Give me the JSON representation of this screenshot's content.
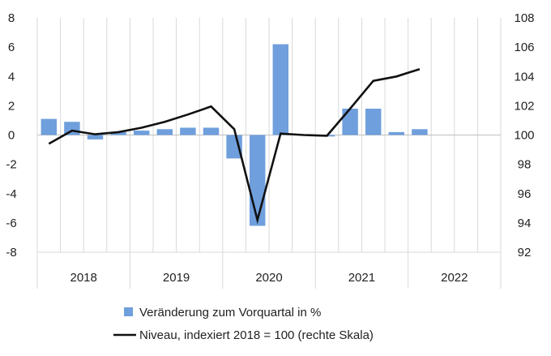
{
  "chart_data": {
    "type": "bar+line",
    "title": "",
    "colors": {
      "bar": "#6f9fdc",
      "line": "#111111",
      "grid": "#d9d9d9"
    },
    "grid": true,
    "legend_position": "bottom",
    "y_left": {
      "min": -8,
      "max": 8,
      "step": 2,
      "ticks": [
        "-8",
        "-6",
        "-4",
        "-2",
        "0",
        "2",
        "4",
        "6",
        "8"
      ]
    },
    "y_right": {
      "min": 92,
      "max": 108,
      "step": 2,
      "ticks": [
        "92",
        "94",
        "96",
        "98",
        "100",
        "102",
        "104",
        "106",
        "108"
      ]
    },
    "years": [
      "2018",
      "2019",
      "2020",
      "2021",
      "2022"
    ],
    "quarters": [
      "2018-Q1",
      "2018-Q2",
      "2018-Q3",
      "2018-Q4",
      "2019-Q1",
      "2019-Q2",
      "2019-Q3",
      "2019-Q4",
      "2020-Q1",
      "2020-Q2",
      "2020-Q3",
      "2020-Q4",
      "2021-Q1",
      "2021-Q2",
      "2021-Q3",
      "2021-Q4",
      "2022-Q1",
      "2022-Q2",
      "2022-Q3",
      "2022-Q4"
    ],
    "series": [
      {
        "name": "Veränderung zum Vorquartal in %",
        "type": "bar",
        "axis": "left",
        "values": [
          1.1,
          0.9,
          -0.3,
          0.2,
          0.3,
          0.4,
          0.5,
          0.5,
          -1.6,
          -6.2,
          6.2,
          0.0,
          -0.1,
          1.8,
          1.8,
          0.2,
          0.4,
          null,
          null,
          null
        ]
      },
      {
        "name": "Niveau, indexiert 2018 = 100 (rechte Skala)",
        "type": "line",
        "axis": "right",
        "values": [
          99.4,
          100.3,
          100.05,
          100.2,
          100.5,
          100.9,
          101.4,
          101.95,
          100.4,
          94.2,
          100.1,
          100.0,
          99.95,
          101.8,
          103.7,
          104.0,
          104.5,
          null,
          null,
          null
        ]
      }
    ]
  }
}
